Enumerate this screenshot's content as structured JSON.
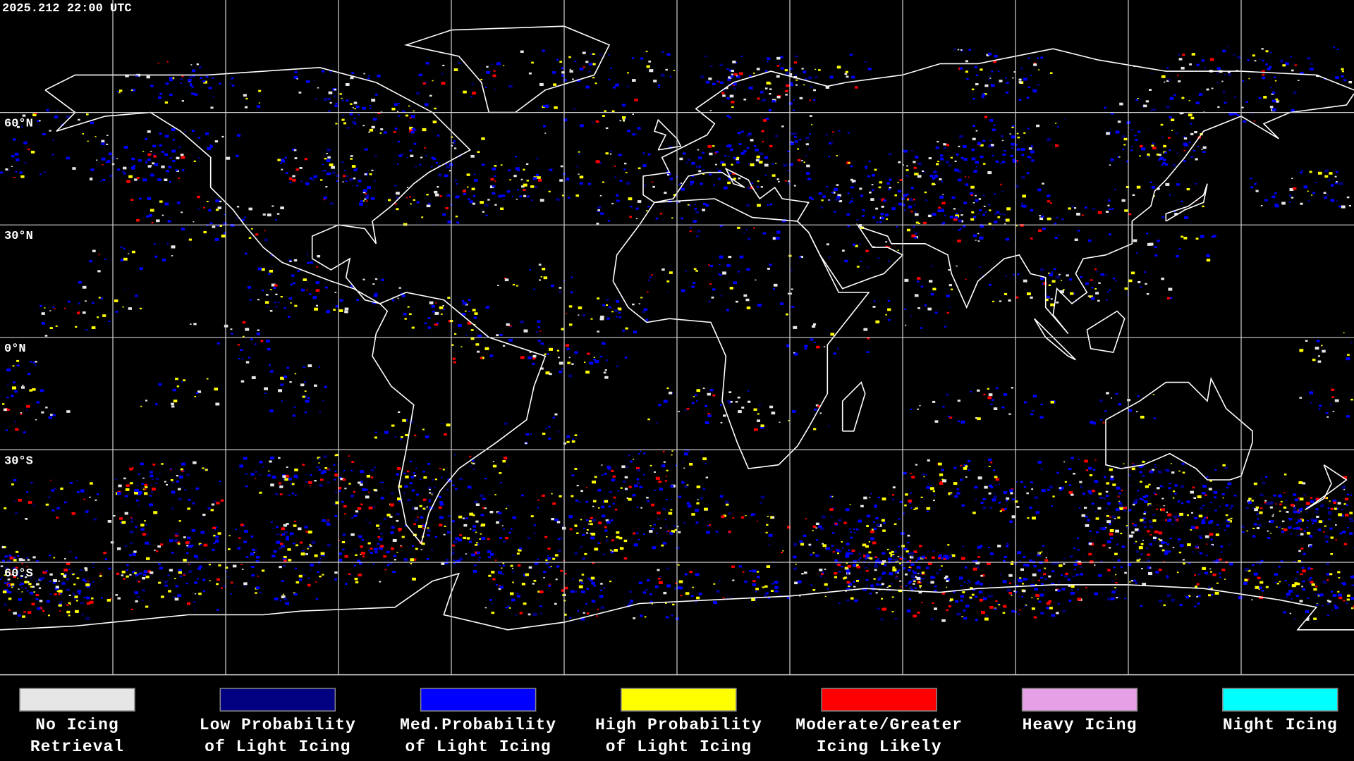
{
  "header": {
    "timestamp": "2025.212 22:00 UTC"
  },
  "map": {
    "lat_labels": [
      "60°N",
      "30°N",
      "0°N",
      "30°S",
      "60°S"
    ]
  },
  "legend": {
    "items": [
      {
        "lines": [
          "No Icing",
          "Retrieval"
        ],
        "color": "#e6e6e6"
      },
      {
        "lines": [
          "Low Probability",
          "of Light Icing"
        ],
        "color": "#000080"
      },
      {
        "lines": [
          "Med.Probability",
          "of Light Icing"
        ],
        "color": "#0000ff"
      },
      {
        "lines": [
          "High Probability",
          "of Light Icing"
        ],
        "color": "#ffff00"
      },
      {
        "lines": [
          "Moderate/Greater",
          "Icing Likely"
        ],
        "color": "#ff0000"
      },
      {
        "lines": [
          "Heavy Icing"
        ],
        "color": "#e6a0e6"
      },
      {
        "lines": [
          "Night Icing"
        ],
        "color": "#00ffff"
      }
    ]
  }
}
